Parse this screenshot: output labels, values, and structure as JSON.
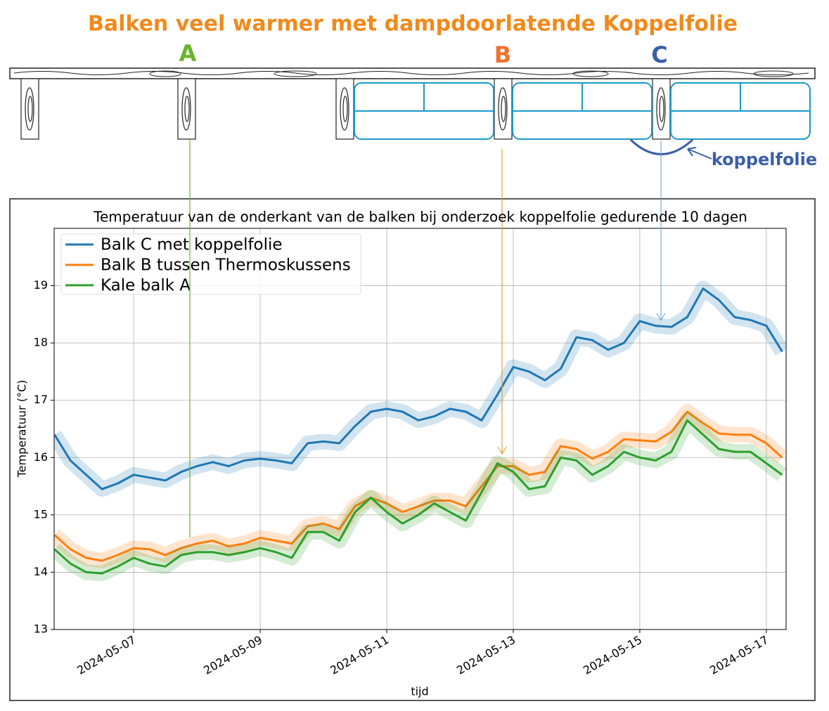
{
  "diagram": {
    "title": "Balken veel warmer met dampdoorlatende Koppelfolie",
    "labels": [
      "A",
      "B",
      "C"
    ],
    "foil_label": "koppelfolie"
  },
  "chart_data": {
    "type": "line",
    "title": "Temperatuur van de onderkant van de balken bij onderzoek koppelfolie gedurende 10 dagen",
    "x_label": "tijd",
    "y_label": "Temperatuur (°C)",
    "x": [
      "2024-05-05T18:00",
      "2024-05-06T00:00",
      "2024-05-06T06:00",
      "2024-05-06T12:00",
      "2024-05-06T18:00",
      "2024-05-07T00:00",
      "2024-05-07T06:00",
      "2024-05-07T12:00",
      "2024-05-07T18:00",
      "2024-05-08T00:00",
      "2024-05-08T06:00",
      "2024-05-08T12:00",
      "2024-05-08T18:00",
      "2024-05-09T00:00",
      "2024-05-09T06:00",
      "2024-05-09T12:00",
      "2024-05-09T18:00",
      "2024-05-10T00:00",
      "2024-05-10T06:00",
      "2024-05-10T12:00",
      "2024-05-10T18:00",
      "2024-05-11T00:00",
      "2024-05-11T06:00",
      "2024-05-11T12:00",
      "2024-05-11T18:00",
      "2024-05-12T00:00",
      "2024-05-12T06:00",
      "2024-05-12T12:00",
      "2024-05-12T18:00",
      "2024-05-13T00:00",
      "2024-05-13T06:00",
      "2024-05-13T12:00",
      "2024-05-13T18:00",
      "2024-05-14T00:00",
      "2024-05-14T06:00",
      "2024-05-14T12:00",
      "2024-05-14T18:00",
      "2024-05-15T00:00",
      "2024-05-15T06:00",
      "2024-05-15T12:00",
      "2024-05-15T18:00",
      "2024-05-16T00:00",
      "2024-05-16T06:00",
      "2024-05-16T12:00",
      "2024-05-16T18:00",
      "2024-05-17T00:00",
      "2024-05-17T06:00"
    ],
    "series": [
      {
        "name": "Balk C met koppelfolie",
        "color": "#1f77b4",
        "values": [
          16.4,
          15.95,
          15.7,
          15.45,
          15.55,
          15.7,
          15.65,
          15.6,
          15.75,
          15.85,
          15.92,
          15.85,
          15.95,
          15.98,
          15.95,
          15.9,
          16.25,
          16.28,
          16.25,
          16.55,
          16.8,
          16.85,
          16.8,
          16.65,
          16.72,
          16.85,
          16.8,
          16.65,
          17.1,
          17.58,
          17.5,
          17.35,
          17.55,
          18.1,
          18.05,
          17.88,
          18.0,
          18.38,
          18.3,
          18.28,
          18.45,
          18.95,
          18.75,
          18.45,
          18.4,
          18.3,
          17.85
        ]
      },
      {
        "name": "Balk B tussen Thermoskussens",
        "color": "#ff7f0e",
        "values": [
          14.65,
          14.4,
          14.25,
          14.2,
          14.3,
          14.42,
          14.4,
          14.3,
          14.42,
          14.5,
          14.55,
          14.45,
          14.5,
          14.6,
          14.55,
          14.5,
          14.8,
          14.85,
          14.75,
          15.15,
          15.3,
          15.2,
          15.05,
          15.15,
          15.25,
          15.25,
          15.15,
          15.5,
          15.85,
          15.85,
          15.7,
          15.75,
          16.2,
          16.15,
          15.98,
          16.1,
          16.32,
          16.3,
          16.28,
          16.45,
          16.8,
          16.6,
          16.42,
          16.4,
          16.4,
          16.25,
          16.0
        ]
      },
      {
        "name": "Kale balk A",
        "color": "#2ca02c",
        "values": [
          14.4,
          14.15,
          14.0,
          13.98,
          14.1,
          14.25,
          14.15,
          14.1,
          14.3,
          14.35,
          14.35,
          14.3,
          14.35,
          14.42,
          14.35,
          14.25,
          14.7,
          14.7,
          14.55,
          15.05,
          15.3,
          15.05,
          14.85,
          15.0,
          15.2,
          15.05,
          14.9,
          15.4,
          15.9,
          15.75,
          15.45,
          15.5,
          16.0,
          15.95,
          15.7,
          15.85,
          16.1,
          16.0,
          15.95,
          16.1,
          16.65,
          16.4,
          16.15,
          16.1,
          16.1,
          15.9,
          15.7
        ]
      }
    ],
    "xlim": [
      "2024-05-05T17:50",
      "2024-05-17T07:30"
    ],
    "xticks": [
      "2024-05-07",
      "2024-05-09",
      "2024-05-11",
      "2024-05-13",
      "2024-05-15",
      "2024-05-17"
    ],
    "ylim": [
      13,
      20
    ],
    "yticks": [
      13,
      14,
      15,
      16,
      17,
      18,
      19
    ],
    "grid": true,
    "legend": "upper left"
  }
}
